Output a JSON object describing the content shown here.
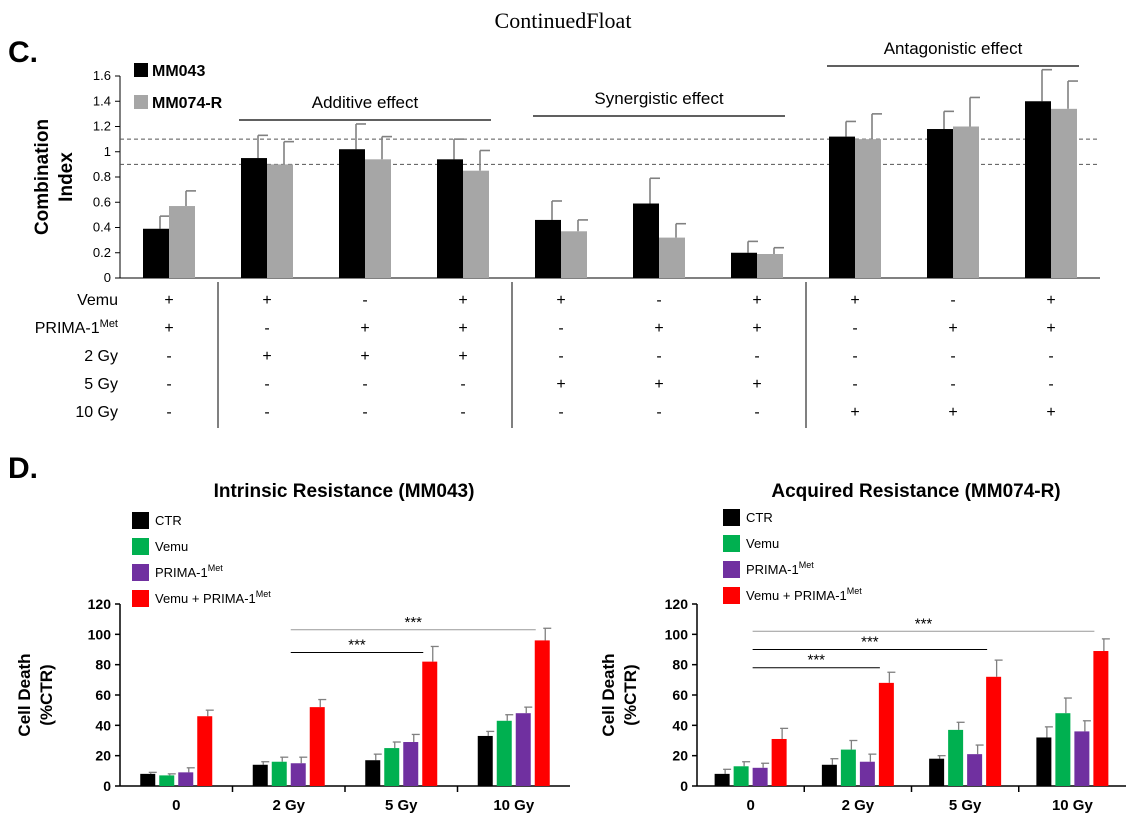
{
  "page": {
    "header": "ContinuedFloat",
    "panel_c_label": "C.",
    "panel_d_label": "D."
  },
  "colors": {
    "mm043": "#000000",
    "mm074r": "#a6a6a6",
    "ctr": "#000000",
    "vemu": "#00b050",
    "prima": "#7030a0",
    "combo": "#ff0000",
    "error_bar": "#808080"
  },
  "chart_data": [
    {
      "type": "bar",
      "panel": "C",
      "ylabel": "Combination Index",
      "ylim": [
        0,
        1.6
      ],
      "yticks": [
        "0",
        "0.2",
        "0.4",
        "0.6",
        "0.8",
        "1",
        "1.2",
        "1.4",
        "1.6"
      ],
      "reference_lines": [
        0.9,
        1.1
      ],
      "legend_placement": "top-left",
      "series": [
        {
          "name": "MM043",
          "values": [
            0.39,
            0.95,
            1.02,
            0.94,
            0.46,
            0.59,
            0.2,
            1.12,
            1.18,
            1.4
          ],
          "errors": [
            0.1,
            0.18,
            0.2,
            0.16,
            0.15,
            0.2,
            0.09,
            0.12,
            0.14,
            0.25
          ]
        },
        {
          "name": "MM074-R",
          "values": [
            0.57,
            0.9,
            0.94,
            0.85,
            0.37,
            0.32,
            0.19,
            1.1,
            1.2,
            1.34
          ],
          "errors": [
            0.12,
            0.18,
            0.18,
            0.16,
            0.09,
            0.11,
            0.05,
            0.2,
            0.23,
            0.22
          ]
        }
      ],
      "annotations": [
        {
          "text": "Additive effect",
          "from": 1,
          "to": 3
        },
        {
          "text": "Synergistic effect",
          "from": 4,
          "to": 6
        },
        {
          "text": "Antagonistic effect",
          "from": 7,
          "to": 9
        }
      ],
      "condition_table": {
        "rows": [
          {
            "label": "Vemu",
            "marks": [
              "+",
              "+",
              "-",
              "+",
              "+",
              "-",
              "+",
              "+",
              "-",
              "+"
            ]
          },
          {
            "label": "PRIMA-1",
            "sup": "Met",
            "marks": [
              "+",
              "-",
              "+",
              "+",
              "-",
              "+",
              "+",
              "-",
              "+",
              "+"
            ]
          },
          {
            "label": "2 Gy",
            "marks": [
              "-",
              "+",
              "+",
              "+",
              "-",
              "-",
              "-",
              "-",
              "-",
              "-"
            ]
          },
          {
            "label": "5 Gy",
            "marks": [
              "-",
              "-",
              "-",
              "-",
              "+",
              "+",
              "+",
              "-",
              "-",
              "-"
            ]
          },
          {
            "label": "10 Gy",
            "marks": [
              "-",
              "-",
              "-",
              "-",
              "-",
              "-",
              "-",
              "+",
              "+",
              "+"
            ]
          }
        ]
      }
    },
    {
      "type": "bar",
      "panel": "D-left",
      "title": "Intrinsic Resistance (MM043)",
      "categories": [
        "0",
        "2 Gy",
        "5 Gy",
        "10 Gy"
      ],
      "ylabel": "Cell Death\n(%CTR)",
      "ylim": [
        0,
        120
      ],
      "yticks": [
        "0",
        "20",
        "40",
        "60",
        "80",
        "100",
        "120"
      ],
      "legend_placement": "top-left",
      "series": [
        {
          "name": "CTR",
          "sup": "",
          "values": [
            8,
            14,
            17,
            33
          ],
          "errors": [
            1,
            2,
            4,
            3
          ]
        },
        {
          "name": "Vemu",
          "sup": "",
          "values": [
            7,
            16,
            25,
            43
          ],
          "errors": [
            1,
            3,
            4,
            4
          ]
        },
        {
          "name": "PRIMA-1",
          "sup": "Met",
          "values": [
            9,
            15,
            29,
            48
          ],
          "errors": [
            3,
            4,
            5,
            4
          ]
        },
        {
          "name": "Vemu + PRIMA-1",
          "sup": "Met",
          "values": [
            46,
            52,
            82,
            96
          ],
          "errors": [
            4,
            5,
            10,
            8
          ]
        }
      ],
      "significance": [
        {
          "text": "***",
          "from": 1,
          "to": 3,
          "level": 103
        },
        {
          "text": "***",
          "from": 1,
          "to": 2,
          "level": 88
        }
      ]
    },
    {
      "type": "bar",
      "panel": "D-right",
      "title": "Acquired  Resistance (MM074-R)",
      "categories": [
        "0",
        "2 Gy",
        "5 Gy",
        "10 Gy"
      ],
      "ylabel": "Cell Death\n(%CTR)",
      "ylim": [
        0,
        120
      ],
      "yticks": [
        "0",
        "20",
        "40",
        "60",
        "80",
        "100",
        "120"
      ],
      "legend_placement": "top-left",
      "series": [
        {
          "name": "CTR",
          "sup": "",
          "values": [
            8,
            14,
            18,
            32
          ],
          "errors": [
            3,
            4,
            2,
            7
          ]
        },
        {
          "name": "Vemu",
          "sup": "",
          "values": [
            13,
            24,
            37,
            48
          ],
          "errors": [
            3,
            6,
            5,
            10
          ]
        },
        {
          "name": "PRIMA-1",
          "sup": "Met",
          "values": [
            12,
            16,
            21,
            36
          ],
          "errors": [
            3,
            5,
            6,
            7
          ]
        },
        {
          "name": "Vemu + PRIMA-1",
          "sup": "Met",
          "values": [
            31,
            68,
            72,
            89
          ],
          "errors": [
            7,
            7,
            11,
            8
          ]
        }
      ],
      "significance": [
        {
          "text": "***",
          "from": 0,
          "to": 3,
          "level": 102
        },
        {
          "text": "***",
          "from": 0,
          "to": 2,
          "level": 90
        },
        {
          "text": "***",
          "from": 0,
          "to": 1,
          "level": 78
        }
      ]
    }
  ]
}
